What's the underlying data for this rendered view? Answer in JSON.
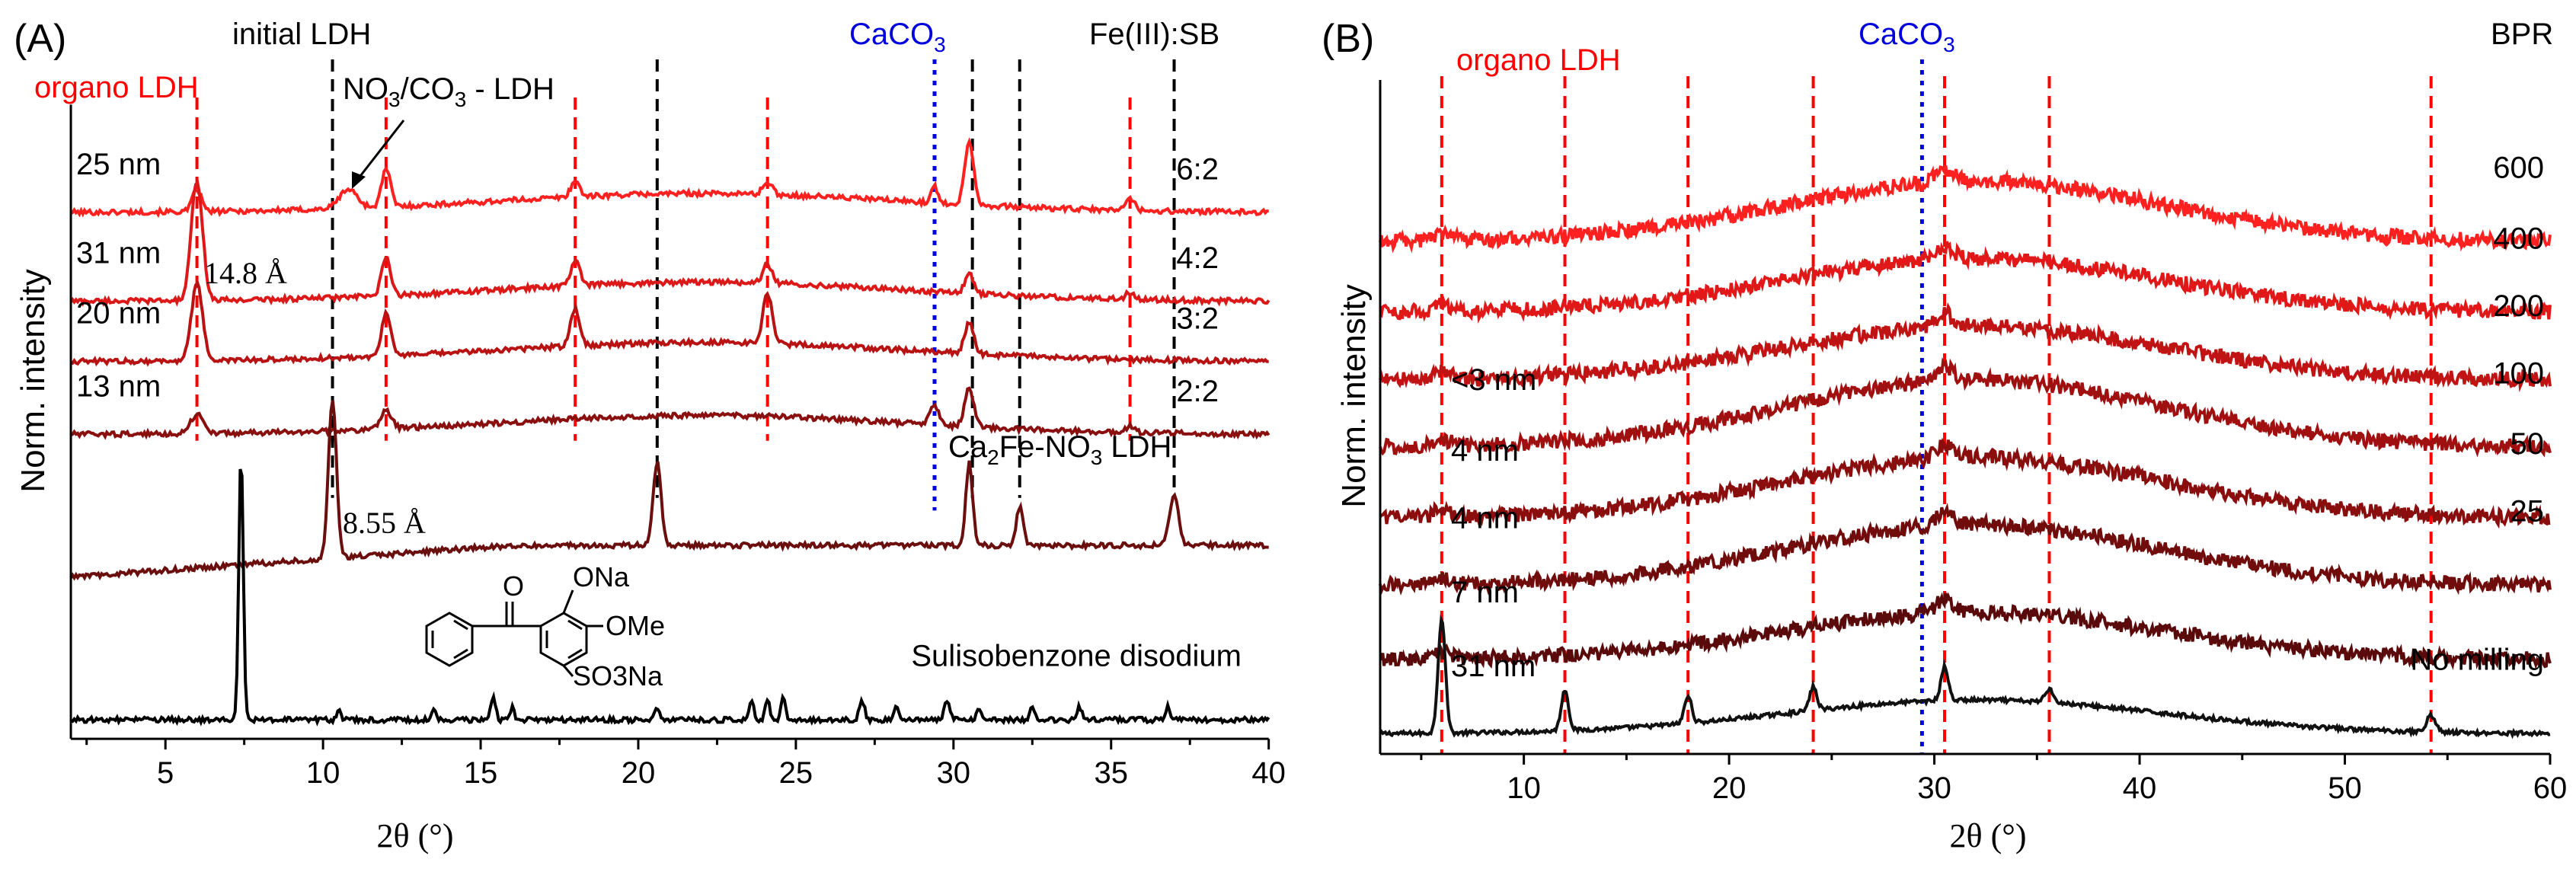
{
  "colors": {
    "red": "#ff0000",
    "black_dash": "#000000",
    "blue": "#0000dd",
    "axis": "#000000"
  },
  "chart_data": [
    {
      "panel_label": "(A)",
      "type": "line",
      "title": "",
      "xlabel": "2θ (°)",
      "ylabel": "Norm. intensity",
      "xlim": [
        2,
        40
      ],
      "xticks": [
        5,
        10,
        15,
        20,
        25,
        30,
        35,
        40
      ],
      "xtick_labels": [
        "5",
        "10",
        "15",
        "20",
        "25",
        "30",
        "35",
        "40"
      ],
      "grid": false,
      "headers": {
        "organo": "organo LDH",
        "initial": "initial LDH",
        "caco3_base": "CaCO",
        "caco3_sub": "3",
        "ratio": "Fe(III):SB"
      },
      "ref_lines_red": [
        6.0,
        12.0,
        18.0,
        24.1,
        35.6
      ],
      "ref_lines_black": [
        10.3,
        20.6,
        30.6,
        32.1,
        37.0
      ],
      "ref_lines_blue": [
        29.4
      ],
      "series": [
        {
          "name": "6:2",
          "size_label": "25 nm",
          "color": "#ff2020",
          "offset": 0.83,
          "peaks": [
            [
              6.0,
              0.035,
              0.2
            ],
            [
              10.8,
              0.03,
              0.4
            ],
            [
              12.0,
              0.06,
              0.2
            ],
            [
              18.0,
              0.025,
              0.2
            ],
            [
              24.1,
              0.02,
              0.2
            ],
            [
              29.4,
              0.025,
              0.15
            ],
            [
              30.5,
              0.1,
              0.2
            ],
            [
              35.6,
              0.02,
              0.2
            ]
          ]
        },
        {
          "name": "4:2",
          "size_label": "31 nm",
          "color": "#dd1818",
          "offset": 0.69,
          "peaks": [
            [
              6.0,
              0.19,
              0.25
            ],
            [
              12.0,
              0.06,
              0.2
            ],
            [
              18.0,
              0.04,
              0.2
            ],
            [
              24.1,
              0.03,
              0.2
            ],
            [
              30.5,
              0.03,
              0.2
            ],
            [
              35.6,
              0.01,
              0.2
            ]
          ]
        },
        {
          "name": "3:2",
          "size_label": "20 nm",
          "color": "#b81212",
          "offset": 0.595,
          "peaks": [
            [
              6.0,
              0.12,
              0.25
            ],
            [
              12.0,
              0.07,
              0.2
            ],
            [
              18.0,
              0.06,
              0.2
            ],
            [
              24.1,
              0.08,
              0.2
            ],
            [
              30.5,
              0.05,
              0.2
            ]
          ]
        },
        {
          "name": "2:2",
          "size_label": "13 nm",
          "color": "#8a1010",
          "offset": 0.48,
          "peaks": [
            [
              6.0,
              0.03,
              0.3
            ],
            [
              12.0,
              0.03,
              0.25
            ],
            [
              29.4,
              0.03,
              0.2
            ],
            [
              30.5,
              0.06,
              0.2
            ],
            [
              35.6,
              0.01,
              0.2
            ]
          ]
        },
        {
          "name": "Ca2Fe-NO3 LDH",
          "size_label": "",
          "color": "#6a0e0e",
          "offset": 0.27,
          "peaks": [
            [
              10.3,
              0.25,
              0.18
            ],
            [
              20.6,
              0.13,
              0.18
            ],
            [
              30.5,
              0.13,
              0.15
            ],
            [
              32.1,
              0.06,
              0.15
            ],
            [
              37.0,
              0.08,
              0.2
            ]
          ]
        },
        {
          "name": "Sulisobenzone disodium",
          "size_label": "",
          "color": "#000000",
          "offset": 0.03,
          "peaks": [
            [
              7.4,
              0.42,
              0.1
            ],
            [
              10.5,
              0.02,
              0.08
            ],
            [
              13.5,
              0.02,
              0.08
            ],
            [
              15.4,
              0.04,
              0.1
            ],
            [
              16.0,
              0.02,
              0.08
            ],
            [
              20.6,
              0.02,
              0.1
            ],
            [
              23.6,
              0.03,
              0.1
            ],
            [
              24.1,
              0.03,
              0.1
            ],
            [
              24.6,
              0.04,
              0.1
            ],
            [
              27.1,
              0.03,
              0.12
            ],
            [
              28.2,
              0.02,
              0.1
            ],
            [
              29.8,
              0.03,
              0.12
            ],
            [
              30.8,
              0.02,
              0.1
            ],
            [
              32.5,
              0.02,
              0.1
            ],
            [
              34.0,
              0.02,
              0.1
            ],
            [
              36.8,
              0.02,
              0.1
            ]
          ]
        }
      ],
      "annotations": {
        "nitrate_base": "NO",
        "nitrate_sub": "3",
        "carbonate_base": "/CO",
        "carbonate_sub": "3",
        "nitrate_tail": " - LDH",
        "d1": "14.8 Å",
        "d2": "8.55 Å",
        "cafe_a": "Ca",
        "cafe_b": "2",
        "cafe_c": "Fe-NO",
        "cafe_d": "3",
        "cafe_e": " LDH",
        "mol_onA": "ONa",
        "mol_ome": "OMe",
        "mol_so3": "SO3Na",
        "mol_o": "O"
      }
    },
    {
      "panel_label": "(B)",
      "type": "line",
      "title": "",
      "xlabel": "2θ (°)",
      "ylabel": "Norm. intensity",
      "xlim": [
        3,
        60
      ],
      "xticks": [
        10,
        20,
        30,
        40,
        50,
        60
      ],
      "xtick_labels": [
        "10",
        "20",
        "30",
        "40",
        "50",
        "60"
      ],
      "grid": false,
      "headers": {
        "organo": "organo LDH",
        "caco3_base": "CaCO",
        "caco3_sub": "3",
        "ratio": "BPR"
      },
      "ref_lines_red": [
        6.0,
        12.0,
        18.0,
        24.1,
        30.5,
        35.6,
        54.2
      ],
      "ref_lines_blue": [
        29.4
      ],
      "series": [
        {
          "name": "600",
          "size_label": "",
          "color": "#ff2020",
          "offset": 0.76,
          "hump": 0.09
        },
        {
          "name": "400",
          "size_label": "",
          "color": "#e01818",
          "offset": 0.655,
          "hump": 0.08
        },
        {
          "name": "200",
          "size_label": "",
          "color": "#c01414",
          "offset": 0.555,
          "hump": 0.08
        },
        {
          "name": "100",
          "size_label": "<3 nm",
          "color": "#a01010",
          "offset": 0.455,
          "hump": 0.1
        },
        {
          "name": "50",
          "size_label": "4 nm",
          "color": "#8a0e0e",
          "offset": 0.35,
          "hump": 0.09
        },
        {
          "name": "25",
          "size_label": "4 nm",
          "color": "#700c0c",
          "offset": 0.25,
          "hump": 0.09
        },
        {
          "name": "",
          "size_label": "7 nm",
          "color": "#5a0a0a",
          "offset": 0.14,
          "hump": 0.07
        },
        {
          "name": "No milling",
          "size_label": "31 nm",
          "color": "#111111",
          "offset": 0.03,
          "hump": 0.05
        }
      ]
    }
  ]
}
